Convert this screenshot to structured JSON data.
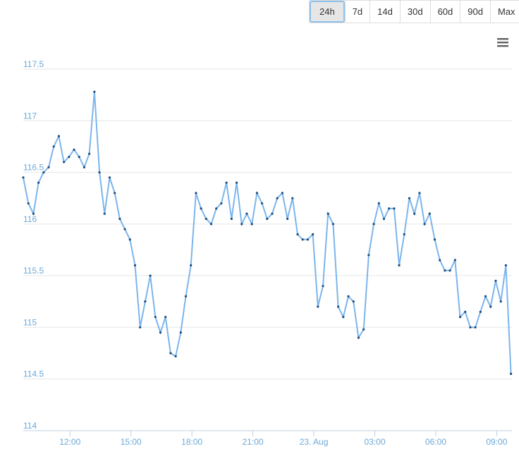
{
  "range_buttons": [
    "24h",
    "7d",
    "14d",
    "30d",
    "60d",
    "90d",
    "Max"
  ],
  "chart_data": {
    "type": "line",
    "x": [
      9.7,
      9.95,
      10.2,
      10.45,
      10.7,
      10.95,
      11.2,
      11.45,
      11.7,
      11.95,
      12.2,
      12.45,
      12.7,
      12.95,
      13.2,
      13.45,
      13.7,
      13.95,
      14.2,
      14.45,
      14.7,
      14.95,
      15.2,
      15.45,
      15.7,
      15.95,
      16.2,
      16.45,
      16.7,
      16.95,
      17.2,
      17.45,
      17.7,
      17.95,
      18.2,
      18.45,
      18.7,
      18.95,
      19.2,
      19.45,
      19.7,
      19.95,
      20.2,
      20.45,
      20.7,
      20.95,
      21.2,
      21.45,
      21.7,
      21.95,
      22.2,
      22.45,
      22.7,
      22.95,
      23.2,
      23.45,
      23.7,
      23.95,
      24.2,
      24.45,
      24.7,
      24.95,
      25.2,
      25.45,
      25.7,
      25.95,
      26.2,
      26.45,
      26.7,
      26.95,
      27.2,
      27.45,
      27.7,
      27.95,
      28.2,
      28.45,
      28.7,
      28.95,
      29.2,
      29.45,
      29.7,
      29.95,
      30.2,
      30.45,
      30.7,
      30.95,
      31.2,
      31.45,
      31.7,
      31.95,
      32.2,
      32.45,
      32.7,
      32.95,
      33.2,
      33.45,
      33.7
    ],
    "series": [
      {
        "color": "#7cb5ec",
        "marker_color": "#1f4e79",
        "values": [
          116.45,
          116.2,
          116.1,
          116.4,
          116.5,
          116.55,
          116.75,
          116.85,
          116.6,
          116.65,
          116.72,
          116.65,
          116.55,
          116.68,
          117.28,
          116.5,
          116.1,
          116.45,
          116.3,
          116.05,
          115.95,
          115.85,
          115.6,
          115.0,
          115.25,
          115.5,
          115.1,
          114.95,
          115.1,
          114.75,
          114.72,
          114.95,
          115.3,
          115.6,
          116.3,
          116.15,
          116.05,
          116.0,
          116.15,
          116.2,
          116.4,
          116.05,
          116.4,
          116.0,
          116.1,
          116.0,
          116.3,
          116.2,
          116.05,
          116.1,
          116.25,
          116.3,
          116.05,
          116.25,
          115.9,
          115.85,
          115.85,
          115.9,
          115.2,
          115.4,
          116.1,
          116.0,
          115.2,
          115.1,
          115.3,
          115.25,
          114.9,
          114.98,
          115.7,
          116.0,
          116.2,
          116.05,
          116.15,
          116.15,
          115.6,
          115.9,
          116.25,
          116.1,
          116.3,
          116.0,
          116.1,
          115.85,
          115.65,
          115.55,
          115.55,
          115.65,
          115.1,
          115.15,
          115.0,
          115.0,
          115.15,
          115.3,
          115.2,
          115.45,
          115.25,
          115.6,
          114.55
        ]
      }
    ],
    "xlim": [
      9.7,
      33.75
    ],
    "xticks": [
      {
        "value": 12,
        "label": "12:00"
      },
      {
        "value": 15,
        "label": "15:00"
      },
      {
        "value": 18,
        "label": "18:00"
      },
      {
        "value": 21,
        "label": "21:00"
      },
      {
        "value": 24,
        "label": "23. Aug"
      },
      {
        "value": 27,
        "label": "03:00"
      },
      {
        "value": 30,
        "label": "06:00"
      },
      {
        "value": 33,
        "label": "09:00"
      }
    ],
    "ylim": [
      114,
      117.5
    ],
    "yticks": [
      114,
      114.5,
      115,
      115.5,
      116,
      116.5,
      117,
      117.5
    ],
    "grid": true
  }
}
